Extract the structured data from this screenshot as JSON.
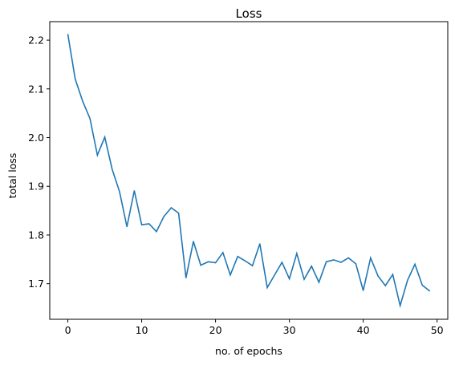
{
  "chart_data": {
    "type": "line",
    "title": "Loss",
    "xlabel": "no. of epochs",
    "ylabel": "total loss",
    "xlim": [
      -2.45,
      51.45
    ],
    "ylim": [
      1.627,
      2.238
    ],
    "xticks": [
      0,
      10,
      20,
      30,
      40,
      50
    ],
    "yticks": [
      1.7,
      1.8,
      1.9,
      2.0,
      2.1,
      2.2
    ],
    "grid": false,
    "line_color": "#1f77b4",
    "series": [
      {
        "x": [
          0,
          1,
          2,
          3,
          4,
          5,
          6,
          7,
          8,
          9,
          10,
          11,
          12,
          13,
          14,
          15,
          16,
          17,
          18,
          19,
          20,
          21,
          22,
          23,
          24,
          25,
          26,
          27,
          28,
          29,
          30,
          31,
          32,
          33,
          34,
          35,
          36,
          37,
          38,
          39,
          40,
          41,
          42,
          43,
          44,
          45,
          46,
          47,
          48,
          49
        ],
        "values": [
          2.212,
          2.12,
          2.075,
          2.039,
          1.964,
          2.001,
          1.935,
          1.889,
          1.817,
          1.891,
          1.821,
          1.823,
          1.807,
          1.838,
          1.856,
          1.845,
          1.712,
          1.787,
          1.738,
          1.745,
          1.743,
          1.764,
          1.718,
          1.756,
          1.747,
          1.737,
          1.782,
          1.692,
          1.718,
          1.744,
          1.71,
          1.762,
          1.709,
          1.736,
          1.703,
          1.745,
          1.749,
          1.744,
          1.753,
          1.741,
          1.686,
          1.753,
          1.716,
          1.696,
          1.719,
          1.655,
          1.707,
          1.74,
          1.697,
          1.685
        ]
      }
    ]
  }
}
